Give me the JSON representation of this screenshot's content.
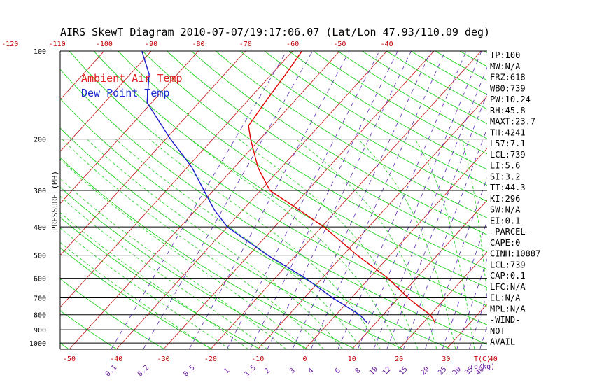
{
  "colors": {
    "temp_line": "#e00000",
    "dew_line": "#1a1acc",
    "isotherm": "#c41010",
    "dry_adiabat": "#1fd21f",
    "moist_adiabat": "#2ad62a",
    "mixing_ratio": "#5a2ab4",
    "isobar": "#000000"
  },
  "chart_data": {
    "type": "line",
    "title": "AIRS SkewT Diagram 2010-07-07/19:17:06.07 (Lat/Lon 47.93/110.09 deg)",
    "ylabel": "PRESSURE (MB)",
    "xlabel_bottom": "T(C)",
    "mixing_label": "(g/kg)",
    "y_scale": "log",
    "ylim": [
      1050,
      100
    ],
    "xlim_bottom": [
      -52,
      40
    ],
    "pressure_ticks": [
      100,
      200,
      300,
      400,
      500,
      600,
      700,
      800,
      900,
      1000
    ],
    "bottom_temp_ticks": [
      -50,
      -40,
      -30,
      -20,
      -10,
      0,
      10,
      20,
      30,
      40
    ],
    "top_temp_ticks": [
      -120,
      -110,
      -100,
      -90,
      -80,
      -70,
      -60,
      -50,
      -40
    ],
    "mixing_ratio_ticks": [
      "0.1",
      "0.2",
      "0.5",
      "1",
      "1.5",
      "2",
      "3",
      "4",
      "6",
      "8",
      "10",
      "12",
      "15",
      "20",
      "25",
      "30",
      "35",
      "40"
    ],
    "legend": [
      "Ambient Air Temp",
      "Dew Point Temp"
    ],
    "series": [
      {
        "name": "Ambient Air Temp",
        "points": [
          {
            "p": 850,
            "t": 22.5
          },
          {
            "p": 800,
            "t": 20.0
          },
          {
            "p": 750,
            "t": 16.0
          },
          {
            "p": 700,
            "t": 12.0
          },
          {
            "p": 600,
            "t": 4.0
          },
          {
            "p": 500,
            "t": -7.0
          },
          {
            "p": 400,
            "t": -19.5
          },
          {
            "p": 350,
            "t": -28.0
          },
          {
            "p": 300,
            "t": -38.0
          },
          {
            "p": 250,
            "t": -45.0
          },
          {
            "p": 200,
            "t": -52.0
          },
          {
            "p": 180,
            "t": -55.0
          },
          {
            "p": 150,
            "t": -56.0
          },
          {
            "p": 120,
            "t": -57.0
          },
          {
            "p": 100,
            "t": -58.0
          }
        ]
      },
      {
        "name": "Dew Point Temp",
        "points": [
          {
            "p": 850,
            "t": 8.0
          },
          {
            "p": 800,
            "t": 5.0
          },
          {
            "p": 700,
            "t": -4.0
          },
          {
            "p": 600,
            "t": -13.5
          },
          {
            "p": 500,
            "t": -26.0
          },
          {
            "p": 400,
            "t": -40.0
          },
          {
            "p": 350,
            "t": -46.0
          },
          {
            "p": 300,
            "t": -52.0
          },
          {
            "p": 250,
            "t": -59.0
          },
          {
            "p": 200,
            "t": -69.0
          },
          {
            "p": 150,
            "t": -81.0
          },
          {
            "p": 120,
            "t": -86.0
          },
          {
            "p": 100,
            "t": -92.0
          }
        ]
      }
    ]
  },
  "indices": [
    "TP:100",
    "MW:N/A",
    "FRZ:618",
    "WB0:739",
    "PW:10.24",
    "RH:45.8",
    "MAXT:23.7",
    "TH:4241",
    "L57:7.1",
    "LCL:739",
    "LI:5.6",
    "SI:3.2",
    "TT:44.3",
    "KI:296",
    "SW:N/A",
    "EI:0.1",
    "-PARCEL-",
    "CAPE:0",
    "CINH:10887",
    "LCL:739",
    "CAP:0.1",
    "LFC:N/A",
    "EL:N/A",
    "MPL:N/A",
    "-WIND-",
    "NOT",
    "AVAIL"
  ]
}
